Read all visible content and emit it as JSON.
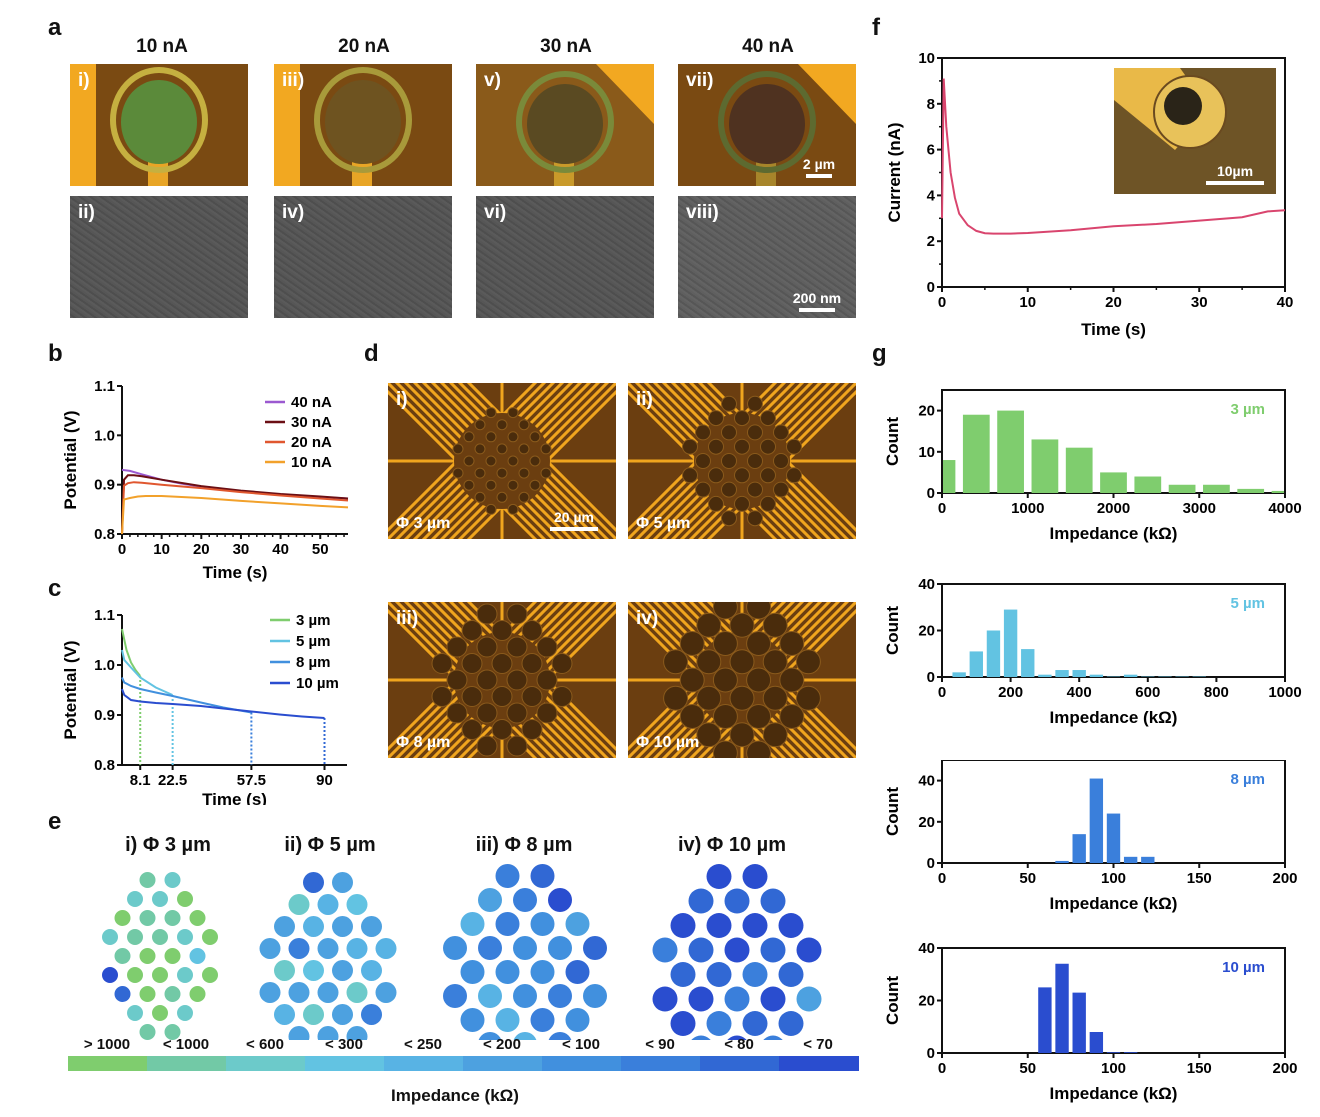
{
  "panel_letters": {
    "a": "a",
    "b": "b",
    "c": "c",
    "d": "d",
    "e": "e",
    "f": "f",
    "g": "g"
  },
  "panel_a": {
    "columns": [
      "10 nA",
      "20 nA",
      "30 nA",
      "40 nA"
    ],
    "optical_labels": [
      "i)",
      "iii)",
      "v)",
      "vii)"
    ],
    "sem_labels": [
      "ii)",
      "iv)",
      "vi)",
      "viii)"
    ],
    "optical_scalebar": "2 µm",
    "sem_scalebar": "200 nm"
  },
  "panel_d": {
    "labels": [
      "i)",
      "ii)",
      "iii)",
      "iv)"
    ],
    "diameters": [
      "Φ 3 µm",
      "Φ 5 µm",
      "Φ 8 µm",
      "Φ 10 µm"
    ],
    "scalebar": "20 µm"
  },
  "panel_e": {
    "titles": [
      "i) Φ 3 µm",
      "ii) Φ 5 µm",
      "iii) Φ 8 µm",
      "iv) Φ 10 µm"
    ],
    "row_pattern": [
      2,
      3,
      4,
      5,
      4,
      5,
      4,
      3,
      2
    ],
    "colorbar": {
      "labels": [
        "> 1000",
        "< 1000",
        "< 600",
        "< 300",
        "< 250",
        "< 200",
        "< 100",
        "< 90",
        "< 80",
        "< 70"
      ],
      "colors": [
        "#7fcd6e",
        "#72c9a6",
        "#6ccaca",
        "#62c3e2",
        "#58b3e4",
        "#4da1e0",
        "#4190de",
        "#3a7fdb",
        "#3168d4",
        "#2a4dcf"
      ],
      "axis_label": "Impedance (kΩ)"
    },
    "arrays": [
      [
        1,
        2,
        2,
        2,
        0,
        0,
        1,
        1,
        0,
        2,
        1,
        1,
        2,
        0,
        1,
        0,
        0,
        3,
        9,
        0,
        0,
        2,
        0,
        8,
        0,
        1,
        0,
        2,
        0,
        2,
        1,
        1
      ],
      [
        8,
        5,
        2,
        4,
        3,
        5,
        4,
        5,
        5,
        5,
        7,
        5,
        4,
        4,
        2,
        3,
        5,
        4,
        5,
        5,
        5,
        2,
        5,
        4,
        2,
        5,
        7,
        5,
        5,
        5,
        5,
        5
      ],
      [
        7,
        8,
        5,
        7,
        9,
        4,
        7,
        6,
        5,
        6,
        7,
        6,
        6,
        8,
        6,
        6,
        6,
        8,
        7,
        4,
        6,
        7,
        6,
        6,
        4,
        7,
        6,
        6,
        4,
        7,
        9,
        7
      ],
      [
        9,
        9,
        8,
        8,
        8,
        9,
        9,
        9,
        9,
        7,
        8,
        9,
        8,
        9,
        8,
        8,
        7,
        8,
        9,
        9,
        7,
        9,
        5,
        9,
        7,
        8,
        8,
        7,
        9,
        7,
        9,
        9
      ]
    ]
  },
  "chart_data": [
    {
      "id": "b",
      "type": "line",
      "xlabel": "Time (s)",
      "ylabel": "Potential (V)",
      "xlim": [
        0,
        57
      ],
      "ylim": [
        0.8,
        1.1
      ],
      "xticks": [
        0,
        10,
        20,
        30,
        40,
        50
      ],
      "yticks": [
        0.8,
        0.9,
        1.0,
        1.1
      ],
      "legend_position": "top-right",
      "series": [
        {
          "name": "40 nA",
          "color": "#9b59d0",
          "x": [
            0,
            2,
            5,
            10,
            15,
            20,
            30,
            40,
            50,
            57
          ],
          "y": [
            0.93,
            0.928,
            0.921,
            0.91,
            0.902,
            0.896,
            0.887,
            0.88,
            0.875,
            0.872
          ]
        },
        {
          "name": "30 nA",
          "color": "#6b0f14",
          "x": [
            0,
            0.5,
            1.5,
            3,
            5,
            10,
            20,
            30,
            40,
            50,
            57
          ],
          "y": [
            0.8,
            0.91,
            0.919,
            0.919,
            0.917,
            0.91,
            0.897,
            0.888,
            0.881,
            0.876,
            0.872
          ]
        },
        {
          "name": "20 nA",
          "color": "#e0572f",
          "x": [
            0,
            0.5,
            1.5,
            3,
            5,
            10,
            20,
            30,
            40,
            50,
            57
          ],
          "y": [
            0.8,
            0.898,
            0.903,
            0.905,
            0.904,
            0.9,
            0.893,
            0.885,
            0.878,
            0.872,
            0.868
          ]
        },
        {
          "name": "10 nA",
          "color": "#f2a12b",
          "x": [
            0,
            0.5,
            2,
            4,
            6,
            10,
            20,
            30,
            40,
            50,
            57
          ],
          "y": [
            0.8,
            0.87,
            0.873,
            0.876,
            0.877,
            0.877,
            0.873,
            0.867,
            0.862,
            0.857,
            0.854
          ]
        }
      ]
    },
    {
      "id": "c",
      "type": "line",
      "xlabel": "Time (s)",
      "ylabel": "Potential (V)",
      "xlim": [
        0,
        100
      ],
      "ylim": [
        0.8,
        1.1
      ],
      "xticks": [
        8.1,
        22.5,
        57.5,
        90
      ],
      "yticks": [
        0.8,
        0.9,
        1.0,
        1.1
      ],
      "legend_position": "top-right",
      "series": [
        {
          "name": "3 µm",
          "color": "#7fcd6e",
          "x": [
            0,
            2,
            4,
            6,
            8.1
          ],
          "y": [
            1.072,
            1.03,
            1.005,
            0.99,
            0.978
          ]
        },
        {
          "name": "5 µm",
          "color": "#62c3e2",
          "x": [
            0,
            1,
            4,
            8.1,
            15,
            22.5
          ],
          "y": [
            1.03,
            1.01,
            0.995,
            0.975,
            0.955,
            0.94
          ]
        },
        {
          "name": "8 µm",
          "color": "#4190de",
          "x": [
            0,
            1,
            4,
            8.1,
            15,
            22.5,
            35,
            45,
            57.5
          ],
          "y": [
            0.975,
            0.965,
            0.958,
            0.952,
            0.945,
            0.938,
            0.925,
            0.915,
            0.905
          ]
        },
        {
          "name": "10 µm",
          "color": "#2a4dcf",
          "x": [
            0,
            1,
            4,
            8.1,
            15,
            22.5,
            35,
            45,
            57.5,
            70,
            80,
            90
          ],
          "y": [
            0.952,
            0.94,
            0.93,
            0.927,
            0.924,
            0.922,
            0.918,
            0.913,
            0.907,
            0.901,
            0.897,
            0.894
          ]
        }
      ],
      "dashed_markers": [
        {
          "x": 8.1,
          "y": 0.978,
          "color": "#7fcd6e"
        },
        {
          "x": 22.5,
          "y": 0.94,
          "color": "#62c3e2"
        },
        {
          "x": 57.5,
          "y": 0.905,
          "color": "#3a7fdb"
        },
        {
          "x": 90,
          "y": 0.894,
          "color": "#3168d4"
        }
      ]
    },
    {
      "id": "f",
      "type": "line",
      "xlabel": "Time (s)",
      "ylabel": "Current (nA)",
      "xlim": [
        0,
        40
      ],
      "ylim": [
        0,
        10
      ],
      "xticks": [
        0,
        10,
        20,
        30,
        40
      ],
      "yticks": [
        0,
        2,
        4,
        6,
        8,
        10
      ],
      "inset_scalebar": "10µm",
      "series": [
        {
          "name": "current",
          "color": "#d9456e",
          "x": [
            0,
            0.2,
            0.5,
            1,
            1.5,
            2,
            3,
            4,
            5,
            6,
            8,
            10,
            15,
            20,
            25,
            30,
            35,
            38,
            40
          ],
          "y": [
            3.0,
            9.1,
            7.0,
            5.0,
            3.9,
            3.2,
            2.7,
            2.45,
            2.35,
            2.33,
            2.33,
            2.36,
            2.48,
            2.65,
            2.75,
            2.9,
            3.05,
            3.3,
            3.35
          ]
        }
      ]
    },
    {
      "id": "g1",
      "type": "bar",
      "label": "3 µm",
      "label_color": "#7fcd6e",
      "bar_color": "#7fcd6e",
      "xlabel": "Impedance (kΩ)",
      "ylabel": "Count",
      "xlim": [
        0,
        4000
      ],
      "ylim": [
        0,
        25
      ],
      "xticks": [
        0,
        1000,
        2000,
        3000,
        4000
      ],
      "yticks": [
        0,
        10,
        20
      ],
      "bin_width": 400,
      "bin_centers": [
        0,
        400,
        800,
        1200,
        1600,
        2000,
        2400,
        2800,
        3200,
        3600,
        4000
      ],
      "values": [
        8,
        19,
        20,
        13,
        11,
        5,
        4,
        2,
        2,
        1,
        0.5
      ]
    },
    {
      "id": "g2",
      "type": "bar",
      "label": "5 µm",
      "label_color": "#62c3e2",
      "bar_color": "#62c3e2",
      "xlabel": "Impedance (kΩ)",
      "ylabel": "Count",
      "xlim": [
        0,
        1000
      ],
      "ylim": [
        0,
        40
      ],
      "xticks": [
        0,
        200,
        400,
        600,
        800,
        1000
      ],
      "yticks": [
        0,
        20,
        40
      ],
      "bin_width": 50,
      "bin_centers": [
        50,
        100,
        150,
        200,
        250,
        300,
        350,
        400,
        450,
        500,
        550,
        600,
        650,
        700,
        750
      ],
      "values": [
        2,
        11,
        20,
        29,
        12,
        1,
        3,
        3,
        1,
        0.2,
        1,
        0.2,
        0.2,
        0.2,
        0.2
      ]
    },
    {
      "id": "g3",
      "type": "bar",
      "label": "8 µm",
      "label_color": "#3a7fdb",
      "bar_color": "#3a7fdb",
      "xlabel": "Impedance (kΩ)",
      "ylabel": "Count",
      "xlim": [
        0,
        200
      ],
      "ylim": [
        0,
        50
      ],
      "xticks": [
        0,
        50,
        100,
        150,
        200
      ],
      "yticks": [
        0,
        20,
        40
      ],
      "bin_width": 10,
      "bin_centers": [
        70,
        80,
        90,
        100,
        110,
        120
      ],
      "values": [
        1,
        14,
        41,
        24,
        3,
        3
      ]
    },
    {
      "id": "g4",
      "type": "bar",
      "label": "10 µm",
      "label_color": "#2a4dcf",
      "bar_color": "#2a4dcf",
      "xlabel": "Impedance (kΩ)",
      "ylabel": "Count",
      "xlim": [
        0,
        200
      ],
      "ylim": [
        0,
        40
      ],
      "xticks": [
        0,
        50,
        100,
        150,
        200
      ],
      "yticks": [
        0,
        20,
        40
      ],
      "bin_width": 10,
      "bin_centers": [
        60,
        70,
        80,
        90,
        100,
        110
      ],
      "values": [
        25,
        34,
        23,
        8,
        0.3,
        0.3
      ]
    }
  ]
}
